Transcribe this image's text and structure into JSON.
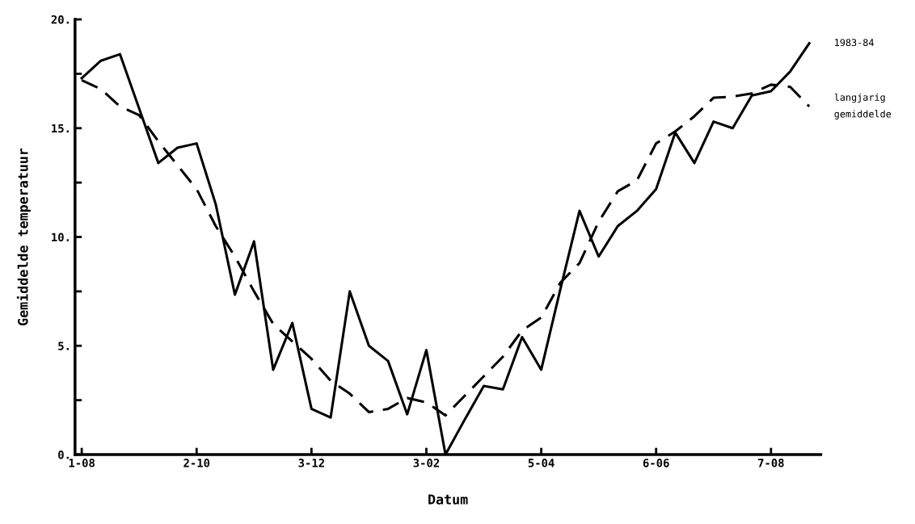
{
  "chart_data": {
    "type": "line",
    "xlabel": "Datum",
    "ylabel": "Gemiddelde temperatuur",
    "categories": [
      "1-08",
      null,
      null,
      null,
      null,
      null,
      "2-10",
      null,
      null,
      null,
      null,
      null,
      "3-12",
      null,
      null,
      null,
      null,
      null,
      "3-02",
      null,
      null,
      null,
      null,
      null,
      "5-04",
      null,
      null,
      null,
      null,
      null,
      "6-06",
      null,
      null,
      null,
      null,
      null,
      "7-08",
      null,
      null
    ],
    "ylim": [
      0,
      20
    ],
    "yticks": [
      {
        "value": 0,
        "label": "0."
      },
      {
        "value": 2.5,
        "label": null
      },
      {
        "value": 5,
        "label": "5."
      },
      {
        "value": 7.5,
        "label": null
      },
      {
        "value": 10,
        "label": "10."
      },
      {
        "value": 12.5,
        "label": null
      },
      {
        "value": 15,
        "label": "15."
      },
      {
        "value": 17.5,
        "label": null
      },
      {
        "value": 20,
        "label": "20."
      }
    ],
    "grid": false,
    "legend": false,
    "marker": "none",
    "series": [
      {
        "name": "1983-84",
        "color": "#000000",
        "line_style": "solid",
        "values": [
          17.3,
          18.1,
          18.4,
          15.9,
          13.4,
          14.1,
          14.3,
          11.5,
          7.35,
          9.8,
          3.9,
          6.05,
          2.1,
          1.7,
          7.5,
          5.0,
          4.3,
          1.85,
          4.8,
          0.0,
          1.6,
          3.15,
          3.0,
          5.4,
          3.9,
          7.6,
          11.2,
          9.1,
          10.5,
          11.2,
          12.2,
          14.8,
          13.4,
          15.3,
          15.0,
          16.5,
          16.7,
          17.6,
          18.9
        ]
      },
      {
        "name": "langjarig\ngemiddelde",
        "color": "#000000",
        "line_style": "dashed",
        "values": [
          17.2,
          16.8,
          16.0,
          15.6,
          14.4,
          13.3,
          12.2,
          10.5,
          9.1,
          7.5,
          6.0,
          5.2,
          4.4,
          3.4,
          2.8,
          1.95,
          2.1,
          2.6,
          2.4,
          1.8,
          2.7,
          3.6,
          4.5,
          5.7,
          6.3,
          7.9,
          8.8,
          10.7,
          12.1,
          12.6,
          14.3,
          14.85,
          15.55,
          16.4,
          16.45,
          16.6,
          17.0,
          16.9,
          16.0
        ]
      }
    ]
  }
}
